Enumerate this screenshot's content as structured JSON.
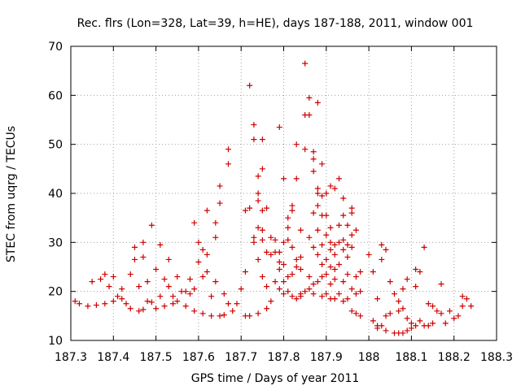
{
  "chart_data": {
    "type": "scatter",
    "title": "Rec. flrs (Lon=328, Lat=39, h=HE), days 187-188, 2011, window 001",
    "xlabel": "GPS time / Days of year 2011",
    "ylabel": "STEC from uqrg / TECUs",
    "xlim": [
      187.3,
      188.3
    ],
    "ylim": [
      10,
      70
    ],
    "x_ticks": [
      "187.3",
      "187.4",
      "187.5",
      "187.6",
      "187.7",
      "187.8",
      "187.9",
      "188",
      "188.1",
      "188.2",
      "188.3"
    ],
    "y_ticks": [
      "10",
      "20",
      "30",
      "40",
      "50",
      "60",
      "70"
    ],
    "grid": true,
    "marker": "+",
    "marker_color": "#cc0000",
    "points": [
      [
        187.31,
        18.0
      ],
      [
        187.32,
        17.5
      ],
      [
        187.34,
        17.0
      ],
      [
        187.35,
        22.0
      ],
      [
        187.36,
        17.2
      ],
      [
        187.37,
        22.5
      ],
      [
        187.38,
        17.5
      ],
      [
        187.38,
        23.5
      ],
      [
        187.39,
        21.0
      ],
      [
        187.4,
        18.0
      ],
      [
        187.4,
        23.0
      ],
      [
        187.41,
        19.0
      ],
      [
        187.42,
        20.5
      ],
      [
        187.42,
        18.5
      ],
      [
        187.43,
        17.5
      ],
      [
        187.44,
        23.5
      ],
      [
        187.44,
        16.5
      ],
      [
        187.45,
        26.5
      ],
      [
        187.45,
        29.0
      ],
      [
        187.46,
        16.0
      ],
      [
        187.46,
        21.0
      ],
      [
        187.47,
        27.0
      ],
      [
        187.47,
        30.0
      ],
      [
        187.47,
        16.3
      ],
      [
        187.48,
        18.0
      ],
      [
        187.48,
        22.0
      ],
      [
        187.49,
        33.5
      ],
      [
        187.49,
        17.8
      ],
      [
        187.5,
        24.5
      ],
      [
        187.5,
        16.5
      ],
      [
        187.51,
        19.0
      ],
      [
        187.51,
        29.5
      ],
      [
        187.52,
        22.5
      ],
      [
        187.52,
        17.0
      ],
      [
        187.53,
        26.5
      ],
      [
        187.53,
        21.0
      ],
      [
        187.54,
        17.5
      ],
      [
        187.54,
        19.0
      ],
      [
        187.55,
        23.0
      ],
      [
        187.55,
        18.0
      ],
      [
        187.56,
        20.0
      ],
      [
        187.57,
        20.0
      ],
      [
        187.57,
        17.0
      ],
      [
        187.58,
        19.5
      ],
      [
        187.58,
        22.5
      ],
      [
        187.59,
        34.0
      ],
      [
        187.59,
        20.5
      ],
      [
        187.59,
        16.0
      ],
      [
        187.6,
        26.0
      ],
      [
        187.6,
        30.0
      ],
      [
        187.61,
        28.5
      ],
      [
        187.61,
        23.0
      ],
      [
        187.61,
        15.5
      ],
      [
        187.62,
        36.5
      ],
      [
        187.62,
        27.5
      ],
      [
        187.62,
        24.0
      ],
      [
        187.63,
        15.0
      ],
      [
        187.63,
        19.0
      ],
      [
        187.64,
        34.0
      ],
      [
        187.64,
        31.0
      ],
      [
        187.64,
        22.0
      ],
      [
        187.65,
        15.0
      ],
      [
        187.65,
        41.5
      ],
      [
        187.65,
        38.0
      ],
      [
        187.66,
        19.5
      ],
      [
        187.66,
        15.2
      ],
      [
        187.67,
        49.0
      ],
      [
        187.67,
        46.0
      ],
      [
        187.67,
        17.5
      ],
      [
        187.68,
        16.0
      ],
      [
        187.69,
        17.5
      ],
      [
        187.7,
        20.5
      ],
      [
        187.71,
        15.0
      ],
      [
        187.71,
        36.5
      ],
      [
        187.71,
        24.0
      ],
      [
        187.72,
        62.0
      ],
      [
        187.72,
        37.0
      ],
      [
        187.72,
        15.0
      ],
      [
        187.73,
        54.0
      ],
      [
        187.73,
        51.0
      ],
      [
        187.73,
        31.0
      ],
      [
        187.73,
        30.0
      ],
      [
        187.74,
        43.5
      ],
      [
        187.74,
        40.0
      ],
      [
        187.74,
        38.5
      ],
      [
        187.74,
        33.0
      ],
      [
        187.74,
        26.5
      ],
      [
        187.74,
        15.5
      ],
      [
        187.75,
        51.0
      ],
      [
        187.75,
        45.0
      ],
      [
        187.75,
        36.5
      ],
      [
        187.75,
        32.5
      ],
      [
        187.75,
        30.5
      ],
      [
        187.75,
        23.0
      ],
      [
        187.76,
        37.0
      ],
      [
        187.76,
        28.0
      ],
      [
        187.76,
        21.0
      ],
      [
        187.76,
        16.5
      ],
      [
        187.77,
        31.0
      ],
      [
        187.77,
        27.5
      ],
      [
        187.77,
        18.0
      ],
      [
        187.78,
        30.5
      ],
      [
        187.78,
        28.0
      ],
      [
        187.78,
        22.0
      ],
      [
        187.79,
        53.5
      ],
      [
        187.79,
        28.0
      ],
      [
        187.79,
        26.0
      ],
      [
        187.79,
        24.5
      ],
      [
        187.79,
        20.5
      ],
      [
        187.8,
        43.0
      ],
      [
        187.8,
        30.0
      ],
      [
        187.8,
        25.5
      ],
      [
        187.8,
        22.0
      ],
      [
        187.8,
        19.5
      ],
      [
        187.81,
        35.0
      ],
      [
        187.81,
        33.0
      ],
      [
        187.81,
        30.5
      ],
      [
        187.81,
        23.0
      ],
      [
        187.81,
        20.0
      ],
      [
        187.82,
        37.5
      ],
      [
        187.82,
        36.5
      ],
      [
        187.82,
        29.0
      ],
      [
        187.82,
        23.5
      ],
      [
        187.82,
        19.0
      ],
      [
        187.83,
        50.0
      ],
      [
        187.83,
        43.0
      ],
      [
        187.83,
        26.5
      ],
      [
        187.83,
        25.0
      ],
      [
        187.83,
        18.5
      ],
      [
        187.84,
        32.5
      ],
      [
        187.84,
        27.0
      ],
      [
        187.84,
        24.5
      ],
      [
        187.84,
        19.0
      ],
      [
        187.84,
        19.5
      ],
      [
        187.85,
        66.5
      ],
      [
        187.85,
        56.0
      ],
      [
        187.85,
        49.0
      ],
      [
        187.85,
        20.0
      ],
      [
        187.86,
        59.5
      ],
      [
        187.86,
        56.0
      ],
      [
        187.86,
        31.0
      ],
      [
        187.86,
        23.0
      ],
      [
        187.86,
        20.5
      ],
      [
        187.87,
        48.5
      ],
      [
        187.87,
        47.0
      ],
      [
        187.87,
        44.5
      ],
      [
        187.87,
        36.0
      ],
      [
        187.87,
        29.0
      ],
      [
        187.87,
        21.5
      ],
      [
        187.87,
        19.5
      ],
      [
        187.88,
        58.5
      ],
      [
        187.88,
        41.0
      ],
      [
        187.88,
        40.0
      ],
      [
        187.88,
        37.5
      ],
      [
        187.88,
        32.5
      ],
      [
        187.88,
        27.5
      ],
      [
        187.88,
        22.0
      ],
      [
        187.89,
        46.0
      ],
      [
        187.89,
        39.5
      ],
      [
        187.89,
        35.5
      ],
      [
        187.89,
        29.5
      ],
      [
        187.89,
        25.5
      ],
      [
        187.89,
        23.0
      ],
      [
        187.89,
        19.0
      ],
      [
        187.9,
        40.0
      ],
      [
        187.9,
        35.5
      ],
      [
        187.9,
        31.5
      ],
      [
        187.9,
        26.5
      ],
      [
        187.9,
        23.5
      ],
      [
        187.9,
        19.5
      ],
      [
        187.91,
        41.5
      ],
      [
        187.91,
        33.0
      ],
      [
        187.91,
        30.0
      ],
      [
        187.91,
        28.5
      ],
      [
        187.91,
        25.0
      ],
      [
        187.91,
        21.5
      ],
      [
        187.91,
        18.5
      ],
      [
        187.92,
        41.0
      ],
      [
        187.92,
        29.5
      ],
      [
        187.92,
        27.5
      ],
      [
        187.92,
        24.5
      ],
      [
        187.92,
        22.5
      ],
      [
        187.92,
        18.5
      ],
      [
        187.93,
        43.0
      ],
      [
        187.93,
        33.5
      ],
      [
        187.93,
        30.0
      ],
      [
        187.93,
        25.5
      ],
      [
        187.93,
        19.5
      ],
      [
        187.94,
        39.0
      ],
      [
        187.94,
        35.5
      ],
      [
        187.94,
        30.5
      ],
      [
        187.94,
        28.5
      ],
      [
        187.94,
        22.0
      ],
      [
        187.94,
        18.0
      ],
      [
        187.95,
        33.5
      ],
      [
        187.95,
        29.5
      ],
      [
        187.95,
        27.0
      ],
      [
        187.95,
        23.5
      ],
      [
        187.95,
        18.5
      ],
      [
        187.96,
        37.0
      ],
      [
        187.96,
        36.0
      ],
      [
        187.96,
        31.5
      ],
      [
        187.96,
        29.0
      ],
      [
        187.96,
        20.5
      ],
      [
        187.96,
        16.0
      ],
      [
        187.97,
        32.5
      ],
      [
        187.97,
        23.0
      ],
      [
        187.97,
        19.5
      ],
      [
        187.97,
        15.5
      ],
      [
        187.98,
        24.0
      ],
      [
        187.98,
        20.0
      ],
      [
        187.98,
        15.0
      ],
      [
        188.0,
        27.5
      ],
      [
        188.01,
        24.0
      ],
      [
        188.01,
        14.0
      ],
      [
        188.02,
        13.0
      ],
      [
        188.02,
        18.5
      ],
      [
        188.02,
        12.5
      ],
      [
        188.03,
        29.5
      ],
      [
        188.03,
        26.5
      ],
      [
        188.03,
        13.0
      ],
      [
        188.04,
        28.5
      ],
      [
        188.04,
        15.0
      ],
      [
        188.04,
        12.0
      ],
      [
        188.05,
        22.0
      ],
      [
        188.05,
        15.5
      ],
      [
        188.06,
        19.5
      ],
      [
        188.06,
        11.5
      ],
      [
        188.07,
        18.0
      ],
      [
        188.07,
        16.0
      ],
      [
        188.07,
        11.5
      ],
      [
        188.08,
        20.5
      ],
      [
        188.08,
        16.5
      ],
      [
        188.08,
        11.5
      ],
      [
        188.09,
        22.5
      ],
      [
        188.09,
        14.5
      ],
      [
        188.09,
        12.0
      ],
      [
        188.1,
        13.5
      ],
      [
        188.1,
        12.5
      ],
      [
        188.11,
        24.5
      ],
      [
        188.11,
        21.0
      ],
      [
        188.11,
        13.0
      ],
      [
        188.12,
        24.0
      ],
      [
        188.12,
        14.0
      ],
      [
        188.13,
        29.0
      ],
      [
        188.13,
        13.0
      ],
      [
        188.14,
        17.5
      ],
      [
        188.14,
        13.0
      ],
      [
        188.15,
        17.0
      ],
      [
        188.15,
        13.5
      ],
      [
        188.16,
        16.0
      ],
      [
        188.17,
        21.5
      ],
      [
        188.17,
        15.5
      ],
      [
        188.18,
        13.5
      ],
      [
        188.19,
        16.0
      ],
      [
        188.2,
        14.5
      ],
      [
        188.21,
        15.0
      ],
      [
        188.22,
        17.0
      ],
      [
        188.22,
        19.0
      ],
      [
        188.23,
        18.5
      ],
      [
        188.24,
        17.0
      ]
    ]
  }
}
